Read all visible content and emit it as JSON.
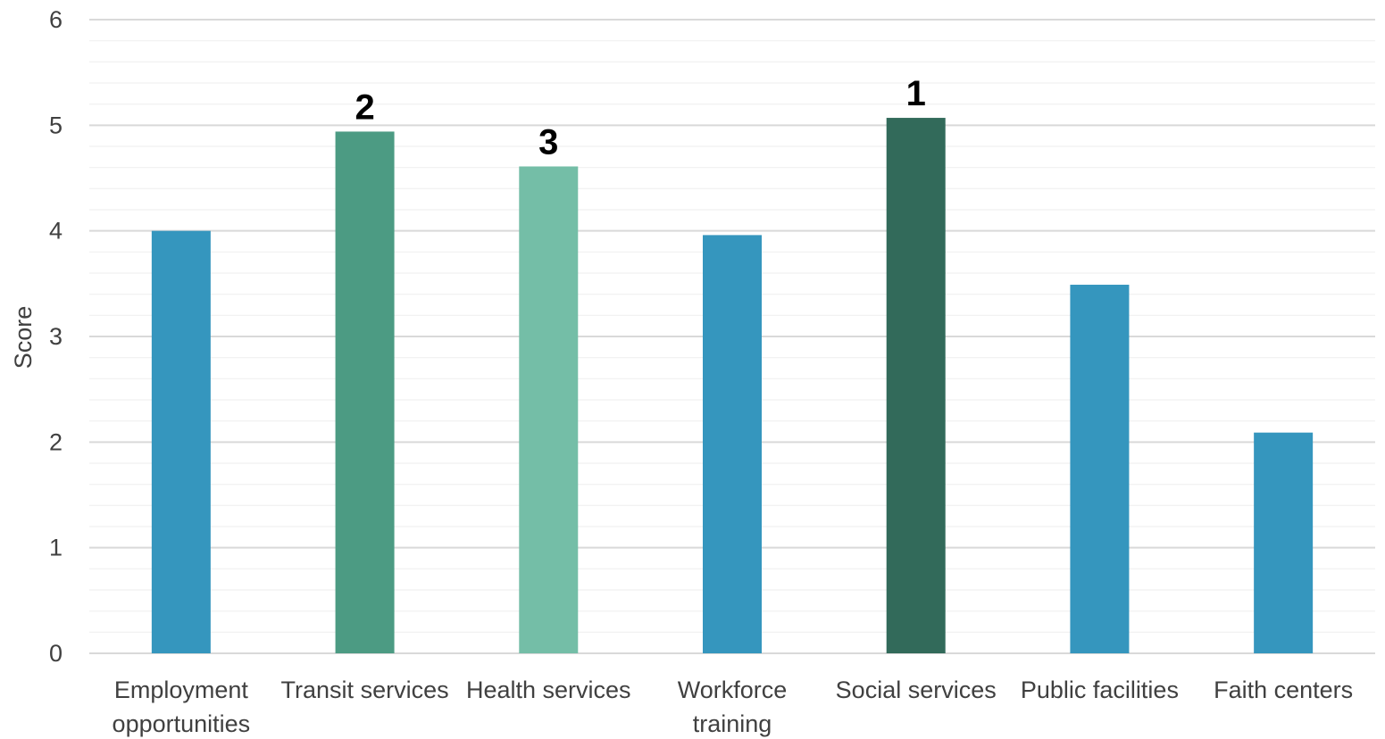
{
  "chart_data": {
    "type": "bar",
    "title": "",
    "xlabel": "",
    "ylabel": "Score",
    "ylim": [
      0,
      6
    ],
    "yticks": [
      0,
      1,
      2,
      3,
      4,
      5,
      6
    ],
    "grid": true,
    "minor_grid": true,
    "categories": [
      [
        "Employment",
        "opportunities"
      ],
      [
        "Transit services"
      ],
      [
        "Health services"
      ],
      [
        "Workforce",
        "training"
      ],
      [
        "Social services"
      ],
      [
        "Public facilities"
      ],
      [
        "Faith centers"
      ]
    ],
    "values": [
      4.0,
      4.94,
      4.61,
      3.96,
      5.07,
      3.49,
      2.09
    ],
    "rank_labels": [
      "",
      "2",
      "3",
      "",
      "1",
      "",
      ""
    ],
    "colors": [
      "#3596be",
      "#4c9b83",
      "#74bea7",
      "#3596be",
      "#326a5a",
      "#3596be",
      "#3596be"
    ],
    "grid_color": "#d9d9d9",
    "minor_grid_color": "#f0f0f0"
  }
}
